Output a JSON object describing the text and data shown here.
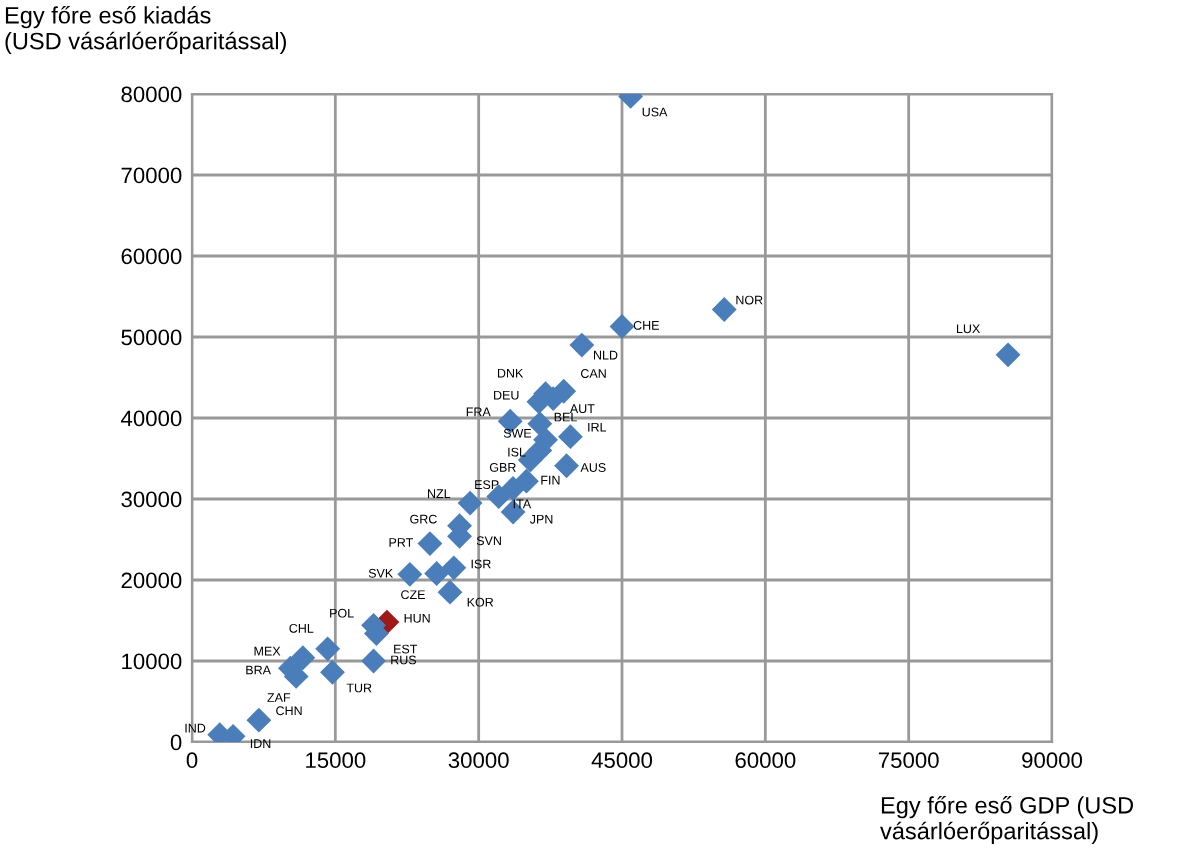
{
  "chart_data": {
    "type": "scatter",
    "xlabel": "Egy főre eső GDP (USD\nvásárlóerőparitással)",
    "ylabel": "Egy főre eső kiadás\n(USD vásárlóerőparitással)",
    "xlim": [
      0,
      90000
    ],
    "ylim": [
      0,
      80000
    ],
    "xticks": [
      0,
      15000,
      30000,
      45000,
      60000,
      75000,
      90000
    ],
    "yticks": [
      0,
      10000,
      20000,
      30000,
      40000,
      50000,
      60000,
      70000,
      80000
    ],
    "grid": true,
    "marker": "diamond",
    "legend": false,
    "x": [
      45900,
      55700,
      85400,
      45000,
      40800,
      38900,
      37800,
      37000,
      36300,
      33300,
      36400,
      39600,
      37000,
      36400,
      35400,
      39200,
      35000,
      33600,
      32100,
      29100,
      33600,
      28000,
      28000,
      24900,
      27400,
      22800,
      25600,
      27000,
      20400,
      19000,
      19300,
      14200,
      11600,
      10300,
      10900,
      14700,
      19000,
      7000,
      2900,
      4300
    ],
    "values": [
      79700,
      53400,
      47800,
      51300,
      49000,
      43300,
      42400,
      43000,
      42000,
      39600,
      39300,
      37700,
      37300,
      36000,
      34800,
      34100,
      32200,
      31300,
      30300,
      29500,
      28400,
      26700,
      25400,
      24500,
      21500,
      20700,
      20800,
      18500,
      14800,
      14400,
      13400,
      11500,
      10400,
      9100,
      8100,
      8600,
      10000,
      2700,
      900,
      700
    ],
    "colors": [
      "#4a7ebb",
      "#4a7ebb",
      "#4a7ebb",
      "#4a7ebb",
      "#4a7ebb",
      "#4a7ebb",
      "#4a7ebb",
      "#4a7ebb",
      "#4a7ebb",
      "#4a7ebb",
      "#4a7ebb",
      "#4a7ebb",
      "#4a7ebb",
      "#4a7ebb",
      "#4a7ebb",
      "#4a7ebb",
      "#4a7ebb",
      "#4a7ebb",
      "#4a7ebb",
      "#4a7ebb",
      "#4a7ebb",
      "#4a7ebb",
      "#4a7ebb",
      "#4a7ebb",
      "#4a7ebb",
      "#4a7ebb",
      "#4a7ebb",
      "#4a7ebb",
      "#a01818",
      "#4a7ebb",
      "#4a7ebb",
      "#4a7ebb",
      "#4a7ebb",
      "#4a7ebb",
      "#4a7ebb",
      "#4a7ebb",
      "#4a7ebb",
      "#4a7ebb",
      "#4a7ebb",
      "#4a7ebb"
    ],
    "annotations": [
      {
        "text": "USA",
        "x": 45900,
        "y": 79700
      },
      {
        "text": "NOR",
        "x": 55700,
        "y": 53400
      },
      {
        "text": "LUX",
        "x": 85400,
        "y": 47800
      },
      {
        "text": "CHE",
        "x": 45000,
        "y": 51300
      },
      {
        "text": "NLD",
        "x": 40800,
        "y": 49000
      },
      {
        "text": "CAN",
        "x": 38900,
        "y": 43300
      },
      {
        "text": "AUT",
        "x": 37800,
        "y": 42400
      },
      {
        "text": "DNK",
        "x": 37000,
        "y": 43000
      },
      {
        "text": "DEU",
        "x": 36300,
        "y": 42000
      },
      {
        "text": "FRA",
        "x": 33300,
        "y": 39600
      },
      {
        "text": "BEL",
        "x": 36400,
        "y": 39300
      },
      {
        "text": "IRL",
        "x": 39600,
        "y": 37700
      },
      {
        "text": "SWE",
        "x": 37000,
        "y": 37300
      },
      {
        "text": "ISL",
        "x": 36400,
        "y": 36000
      },
      {
        "text": "GBR",
        "x": 35400,
        "y": 34800
      },
      {
        "text": "AUS",
        "x": 39200,
        "y": 34100
      },
      {
        "text": "FIN",
        "x": 35000,
        "y": 32200
      },
      {
        "text": "ESP",
        "x": 33600,
        "y": 31300
      },
      {
        "text": "ITA",
        "x": 32100,
        "y": 30300
      },
      {
        "text": "NZL",
        "x": 29100,
        "y": 29500
      },
      {
        "text": "JPN",
        "x": 33600,
        "y": 28400
      },
      {
        "text": "GRC",
        "x": 28000,
        "y": 26700
      },
      {
        "text": "SVN",
        "x": 28000,
        "y": 25400
      },
      {
        "text": "PRT",
        "x": 24900,
        "y": 24500
      },
      {
        "text": "ISR",
        "x": 27400,
        "y": 21500
      },
      {
        "text": "SVK",
        "x": 22800,
        "y": 20700
      },
      {
        "text": "CZE",
        "x": 25600,
        "y": 20800
      },
      {
        "text": "KOR",
        "x": 27000,
        "y": 18500
      },
      {
        "text": "HUN",
        "x": 20400,
        "y": 14800
      },
      {
        "text": "POL",
        "x": 19000,
        "y": 14400
      },
      {
        "text": "EST",
        "x": 19300,
        "y": 13400
      },
      {
        "text": "CHL",
        "x": 14200,
        "y": 11500
      },
      {
        "text": "MEX",
        "x": 11600,
        "y": 10400
      },
      {
        "text": "BRA",
        "x": 10300,
        "y": 9100
      },
      {
        "text": "ZAF",
        "x": 10900,
        "y": 8100
      },
      {
        "text": "TUR",
        "x": 14700,
        "y": 8600
      },
      {
        "text": "RUS",
        "x": 19000,
        "y": 10000
      },
      {
        "text": "CHN",
        "x": 7000,
        "y": 2700
      },
      {
        "text": "IND",
        "x": 2900,
        "y": 900
      },
      {
        "text": "IDN",
        "x": 4300,
        "y": 700
      }
    ]
  }
}
